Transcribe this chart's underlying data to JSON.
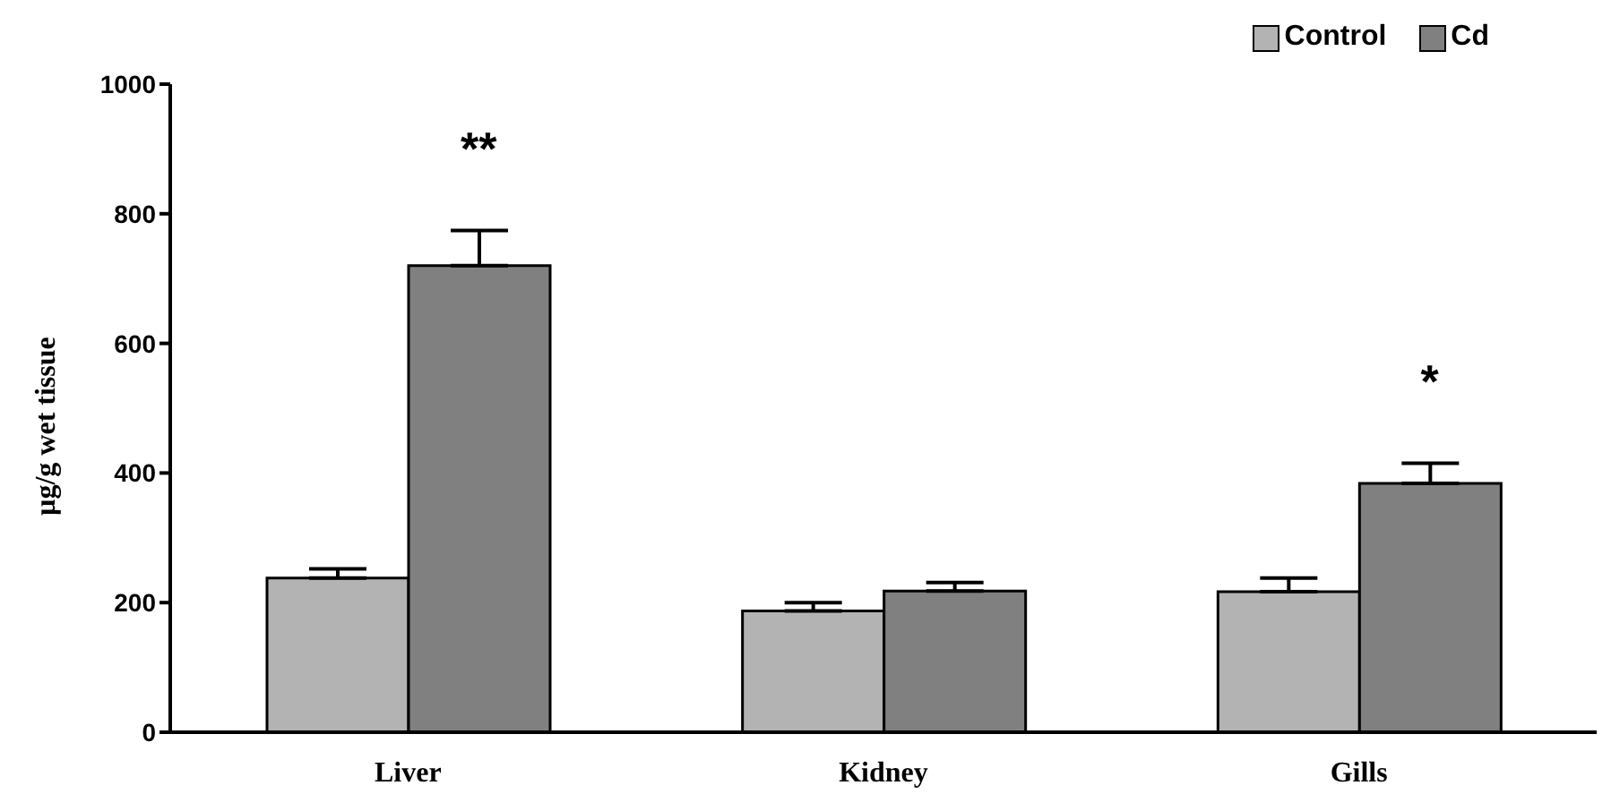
{
  "chart_data": {
    "type": "bar",
    "categories": [
      "Liver",
      "Kidney",
      "Gills"
    ],
    "ylabel": "µg/g wet tissue",
    "series": [
      {
        "name": "Control",
        "color": "#b3b3b3",
        "values": [
          238,
          187,
          217
        ],
        "errors": [
          [
            238,
            252
          ],
          [
            187,
            200
          ],
          [
            217,
            238
          ]
        ]
      },
      {
        "name": "Cd",
        "color": "#808080",
        "values": [
          720,
          218,
          384
        ],
        "errors": [
          [
            720,
            774
          ],
          [
            218,
            231
          ],
          [
            384,
            415
          ]
        ]
      }
    ],
    "ylim": [
      0,
      1000
    ],
    "yticks": [
      0,
      200,
      400,
      600,
      800,
      1000
    ],
    "grid": false,
    "legend": "top right",
    "annotations": [
      "**",
      "*"
    ]
  }
}
